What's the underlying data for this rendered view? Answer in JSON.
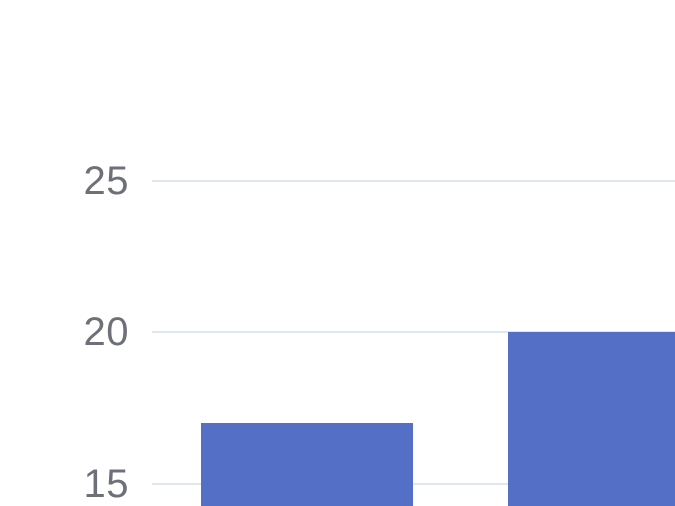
{
  "chart_data": {
    "type": "bar",
    "title": "",
    "xlabel": "",
    "ylabel": "",
    "values": [
      17,
      20
    ],
    "y_ticks": [
      15,
      20,
      25
    ],
    "y_tick_labels": [
      "15",
      "20",
      "25"
    ],
    "y_tick_interval": 5,
    "grid": true,
    "legend": false,
    "bar_color": "#5470C6",
    "gridline_color": "#E0E6F1",
    "tick_label_color": "#6E7079",
    "background_color": "#FFFFFF"
  }
}
